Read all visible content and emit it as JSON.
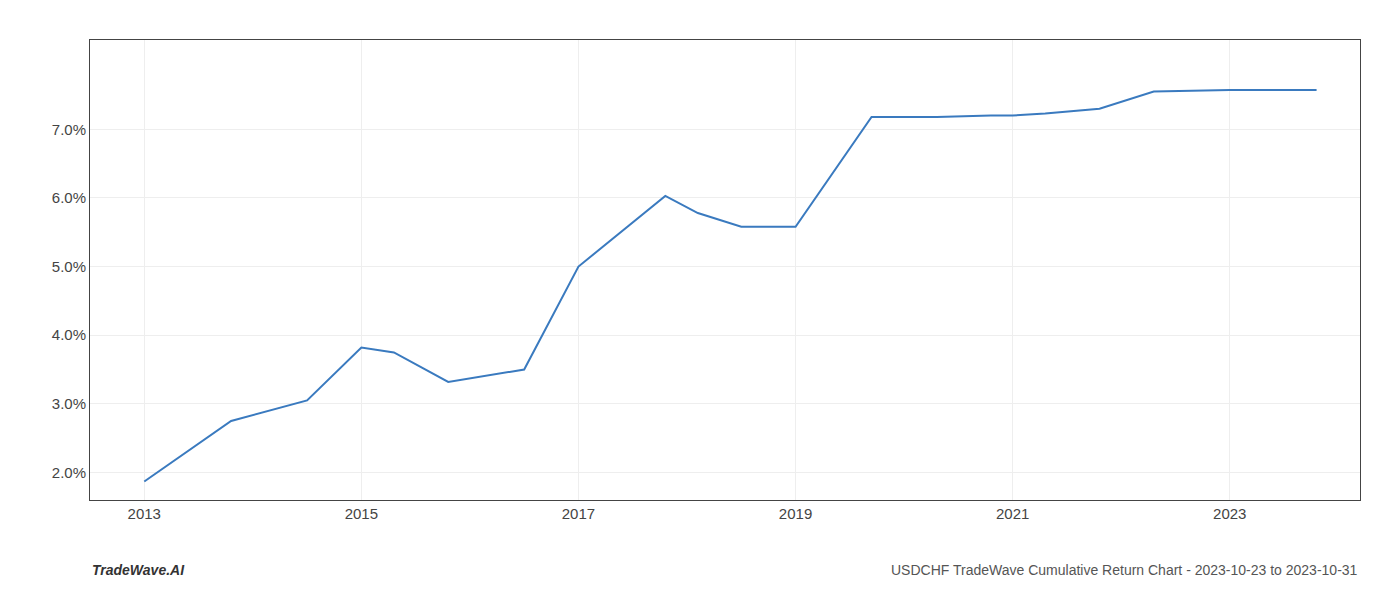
{
  "chart_data": {
    "type": "line",
    "x": [
      2013.0,
      2013.8,
      2014.5,
      2015.0,
      2015.3,
      2015.8,
      2016.5,
      2017.0,
      2017.8,
      2018.1,
      2018.5,
      2019.0,
      2019.7,
      2020.3,
      2020.8,
      2021.0,
      2021.3,
      2021.8,
      2022.3,
      2022.8,
      2023.0,
      2023.8
    ],
    "values": [
      1.87,
      2.75,
      3.05,
      3.82,
      3.75,
      3.32,
      3.5,
      5.0,
      6.03,
      5.78,
      5.58,
      5.58,
      7.18,
      7.18,
      7.2,
      7.2,
      7.23,
      7.3,
      7.55,
      7.57,
      7.57,
      7.57
    ],
    "color": "#3a7abf",
    "xlim": [
      2012.5,
      2024.2
    ],
    "xticks": [
      2013,
      2015,
      2017,
      2019,
      2021,
      2023
    ],
    "ylim": [
      1.6,
      8.3
    ],
    "yticks": [
      {
        "value": 2.0,
        "label": "2.0%"
      },
      {
        "value": 3.0,
        "label": "3.0%"
      },
      {
        "value": 4.0,
        "label": "4.0%"
      },
      {
        "value": 5.0,
        "label": "5.0%"
      },
      {
        "value": 6.0,
        "label": "6.0%"
      },
      {
        "value": 7.0,
        "label": "7.0%"
      }
    ],
    "grid": true,
    "annotations": [
      "TradeWave.AI",
      "USDCHF TradeWave Cumulative Return Chart - 2023-10-23 to 2023-10-31"
    ]
  }
}
